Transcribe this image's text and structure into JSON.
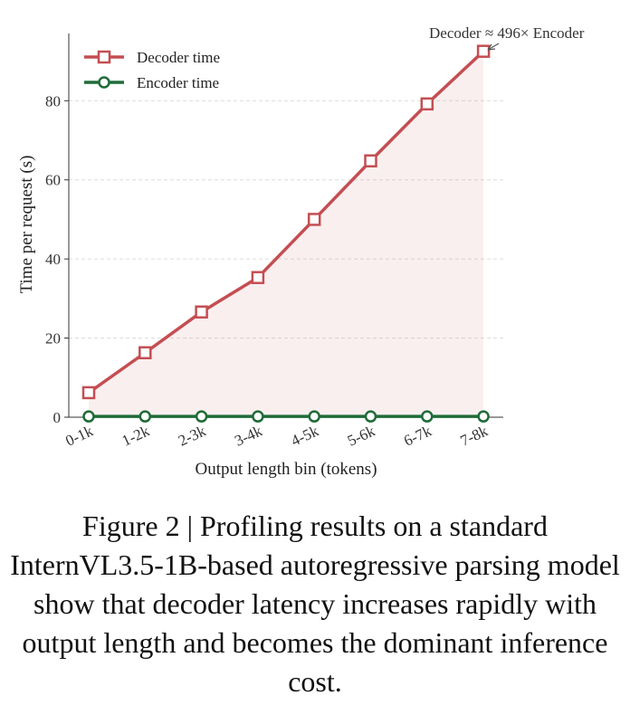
{
  "chart_data": {
    "type": "line",
    "categories": [
      "0-1k",
      "1-2k",
      "2-3k",
      "3-4k",
      "4-5k",
      "5-6k",
      "6-7k",
      "7-8k"
    ],
    "series": [
      {
        "name": "Decoder time",
        "values": [
          6.2,
          16.3,
          26.6,
          35.3,
          50.0,
          64.8,
          79.2,
          92.5
        ],
        "color": "#c44e52",
        "marker": "square",
        "filled_area": true
      },
      {
        "name": "Encoder time",
        "values": [
          0.19,
          0.19,
          0.19,
          0.19,
          0.19,
          0.19,
          0.19,
          0.19
        ],
        "color": "#1f6b38",
        "marker": "circle"
      }
    ],
    "xlabel": "Output length bin (tokens)",
    "ylabel": "Time per request (s)",
    "ylim": [
      0,
      97
    ],
    "yticks": [
      0,
      20,
      40,
      60,
      80
    ],
    "grid": "horizontal-dashed",
    "legend": "top-left",
    "annotation": "Decoder ≈ 496× Encoder"
  },
  "caption": "Figure 2 | Profiling results on a standard InternVL3.5-1B-based autoregressive parsing model show that decoder latency increases rapidly with output length and becomes the dominant inference cost."
}
